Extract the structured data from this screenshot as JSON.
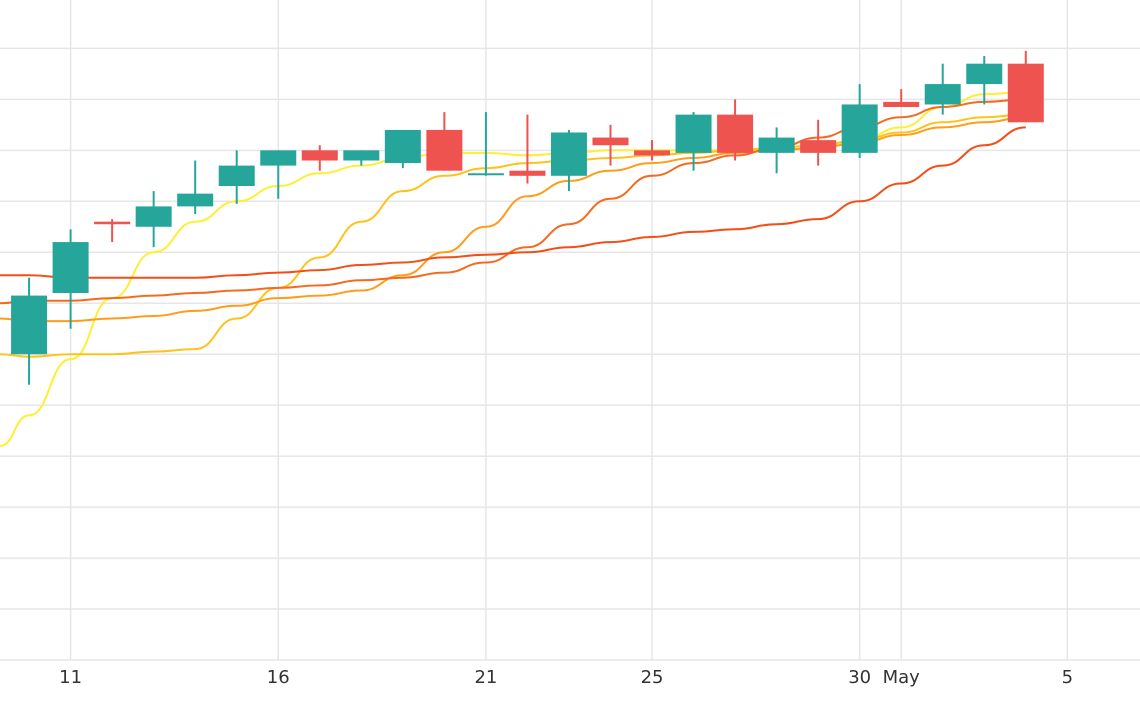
{
  "chart_data": {
    "type": "candlestick",
    "grid": true,
    "x_tick_labels": [
      {
        "day": 11,
        "label": "11"
      },
      {
        "day": 16,
        "label": "16"
      },
      {
        "day": 21,
        "label": "21"
      },
      {
        "day": 25,
        "label": "25"
      },
      {
        "day": 30,
        "label": "30"
      },
      {
        "day": 31,
        "label": "May"
      },
      {
        "day": 35,
        "label": "5"
      }
    ],
    "y_gridlines": [
      0,
      1,
      2,
      3,
      4,
      5,
      6,
      7,
      8,
      9,
      10,
      11,
      12
    ],
    "ylim": [
      0,
      12.4
    ],
    "xlim": [
      9.3,
      36.75
    ],
    "colors": {
      "up": "#26a69a",
      "down": "#ef5350",
      "grid": "#e6e6e6"
    },
    "candles": [
      {
        "day": 10,
        "open": 6.0,
        "high": 7.5,
        "low": 5.4,
        "close": 7.15
      },
      {
        "day": 11,
        "open": 7.2,
        "high": 8.45,
        "low": 6.5,
        "close": 8.2
      },
      {
        "day": 12,
        "open": 8.6,
        "high": 8.65,
        "low": 8.2,
        "close": 8.55
      },
      {
        "day": 13,
        "open": 8.5,
        "high": 9.2,
        "low": 8.1,
        "close": 8.9
      },
      {
        "day": 14,
        "open": 8.9,
        "high": 9.8,
        "low": 8.75,
        "close": 9.15
      },
      {
        "day": 15,
        "open": 9.3,
        "high": 10.0,
        "low": 8.95,
        "close": 9.7
      },
      {
        "day": 16,
        "open": 9.7,
        "high": 10.0,
        "low": 9.05,
        "close": 10.0
      },
      {
        "day": 17,
        "open": 10.0,
        "high": 10.1,
        "low": 9.6,
        "close": 9.8
      },
      {
        "day": 18,
        "open": 9.8,
        "high": 10.0,
        "low": 9.7,
        "close": 10.0
      },
      {
        "day": 19,
        "open": 9.75,
        "high": 10.35,
        "low": 9.65,
        "close": 10.4
      },
      {
        "day": 20,
        "open": 10.4,
        "high": 10.75,
        "low": 9.6,
        "close": 9.6
      },
      {
        "day": 21,
        "open": 9.55,
        "high": 10.75,
        "low": 9.5,
        "close": 9.55
      },
      {
        "day": 22,
        "open": 9.6,
        "high": 10.7,
        "low": 9.35,
        "close": 9.5
      },
      {
        "day": 23,
        "open": 9.5,
        "high": 10.4,
        "low": 9.2,
        "close": 10.35
      },
      {
        "day": 24,
        "open": 10.25,
        "high": 10.5,
        "low": 9.7,
        "close": 10.1
      },
      {
        "day": 25,
        "open": 10.0,
        "high": 10.2,
        "low": 9.8,
        "close": 9.9
      },
      {
        "day": 26,
        "open": 9.95,
        "high": 10.75,
        "low": 9.6,
        "close": 10.7
      },
      {
        "day": 27,
        "open": 10.7,
        "high": 11.0,
        "low": 9.8,
        "close": 9.95
      },
      {
        "day": 28,
        "open": 9.95,
        "high": 10.45,
        "low": 9.55,
        "close": 10.25
      },
      {
        "day": 29,
        "open": 10.2,
        "high": 10.6,
        "low": 9.7,
        "close": 9.95
      },
      {
        "day": 30,
        "open": 9.95,
        "high": 11.3,
        "low": 9.85,
        "close": 10.9
      },
      {
        "day": 31,
        "open": 10.95,
        "high": 11.2,
        "low": 10.85,
        "close": 10.85
      },
      {
        "day": 32,
        "open": 10.9,
        "high": 11.7,
        "low": 10.7,
        "close": 11.3
      },
      {
        "day": 33,
        "open": 11.3,
        "high": 11.85,
        "low": 10.9,
        "close": 11.7
      },
      {
        "day": 34,
        "open": 11.7,
        "high": 11.95,
        "low": 10.55,
        "close": 10.55
      }
    ],
    "series": [
      {
        "color": "#ffee33",
        "values": [
          [
            9.3,
            4.2
          ],
          [
            10,
            4.8
          ],
          [
            11,
            5.9
          ],
          [
            12,
            7.1
          ],
          [
            13,
            8.0
          ],
          [
            14,
            8.6
          ],
          [
            15,
            9.0
          ],
          [
            16,
            9.3
          ],
          [
            17,
            9.55
          ],
          [
            18,
            9.7
          ],
          [
            19,
            9.85
          ],
          [
            20,
            9.95
          ],
          [
            21,
            9.95
          ],
          [
            22,
            9.9
          ],
          [
            23,
            9.95
          ],
          [
            24,
            10.0
          ],
          [
            25,
            10.0
          ],
          [
            26,
            10.0
          ],
          [
            27,
            10.0
          ],
          [
            28,
            10.0
          ],
          [
            29,
            10.05
          ],
          [
            30,
            10.2
          ],
          [
            31,
            10.45
          ],
          [
            32,
            10.85
          ],
          [
            33,
            11.1
          ],
          [
            34,
            11.15
          ]
        ]
      },
      {
        "color": "#ffc21a",
        "values": [
          [
            9.3,
            6.0
          ],
          [
            10,
            5.95
          ],
          [
            11,
            6.0
          ],
          [
            12,
            6.0
          ],
          [
            13,
            6.05
          ],
          [
            14,
            6.1
          ],
          [
            15,
            6.7
          ],
          [
            16,
            7.3
          ],
          [
            17,
            7.9
          ],
          [
            18,
            8.6
          ],
          [
            19,
            9.2
          ],
          [
            20,
            9.5
          ],
          [
            21,
            9.65
          ],
          [
            22,
            9.75
          ],
          [
            23,
            9.8
          ],
          [
            24,
            9.85
          ],
          [
            25,
            9.9
          ],
          [
            26,
            9.95
          ],
          [
            27,
            10.0
          ],
          [
            28,
            10.05
          ],
          [
            29,
            10.1
          ],
          [
            30,
            10.2
          ],
          [
            31,
            10.35
          ],
          [
            32,
            10.55
          ],
          [
            33,
            10.65
          ],
          [
            34,
            10.7
          ]
        ]
      },
      {
        "color": "#ff9c1a",
        "values": [
          [
            9.3,
            6.7
          ],
          [
            10,
            6.65
          ],
          [
            11,
            6.65
          ],
          [
            12,
            6.7
          ],
          [
            13,
            6.75
          ],
          [
            14,
            6.85
          ],
          [
            15,
            6.95
          ],
          [
            16,
            7.1
          ],
          [
            17,
            7.15
          ],
          [
            18,
            7.25
          ],
          [
            19,
            7.55
          ],
          [
            20,
            8.0
          ],
          [
            21,
            8.5
          ],
          [
            22,
            9.1
          ],
          [
            23,
            9.4
          ],
          [
            24,
            9.6
          ],
          [
            25,
            9.75
          ],
          [
            26,
            9.85
          ],
          [
            27,
            9.95
          ],
          [
            28,
            10.0
          ],
          [
            29,
            10.05
          ],
          [
            30,
            10.15
          ],
          [
            31,
            10.3
          ],
          [
            32,
            10.45
          ],
          [
            33,
            10.55
          ],
          [
            34,
            10.65
          ]
        ]
      },
      {
        "color": "#f56a1f",
        "values": [
          [
            9.3,
            7.0
          ],
          [
            10,
            7.05
          ],
          [
            11,
            7.05
          ],
          [
            12,
            7.1
          ],
          [
            13,
            7.15
          ],
          [
            14,
            7.2
          ],
          [
            15,
            7.25
          ],
          [
            16,
            7.3
          ],
          [
            17,
            7.35
          ],
          [
            18,
            7.45
          ],
          [
            19,
            7.5
          ],
          [
            20,
            7.6
          ],
          [
            21,
            7.8
          ],
          [
            22,
            8.1
          ],
          [
            23,
            8.55
          ],
          [
            24,
            9.05
          ],
          [
            25,
            9.5
          ],
          [
            26,
            9.75
          ],
          [
            27,
            9.9
          ],
          [
            28,
            10.05
          ],
          [
            29,
            10.25
          ],
          [
            30,
            10.45
          ],
          [
            31,
            10.65
          ],
          [
            32,
            10.85
          ],
          [
            33,
            10.95
          ],
          [
            34,
            11.0
          ]
        ]
      },
      {
        "color": "#f24e16",
        "values": [
          [
            9.3,
            7.55
          ],
          [
            10,
            7.55
          ],
          [
            11,
            7.5
          ],
          [
            12,
            7.5
          ],
          [
            13,
            7.5
          ],
          [
            14,
            7.5
          ],
          [
            15,
            7.55
          ],
          [
            16,
            7.6
          ],
          [
            17,
            7.65
          ],
          [
            18,
            7.75
          ],
          [
            19,
            7.8
          ],
          [
            20,
            7.9
          ],
          [
            21,
            7.95
          ],
          [
            22,
            8.0
          ],
          [
            23,
            8.1
          ],
          [
            24,
            8.2
          ],
          [
            25,
            8.3
          ],
          [
            26,
            8.4
          ],
          [
            27,
            8.45
          ],
          [
            28,
            8.55
          ],
          [
            29,
            8.65
          ],
          [
            30,
            9.0
          ],
          [
            31,
            9.35
          ],
          [
            32,
            9.7
          ],
          [
            33,
            10.1
          ],
          [
            34,
            10.45
          ]
        ]
      }
    ]
  }
}
